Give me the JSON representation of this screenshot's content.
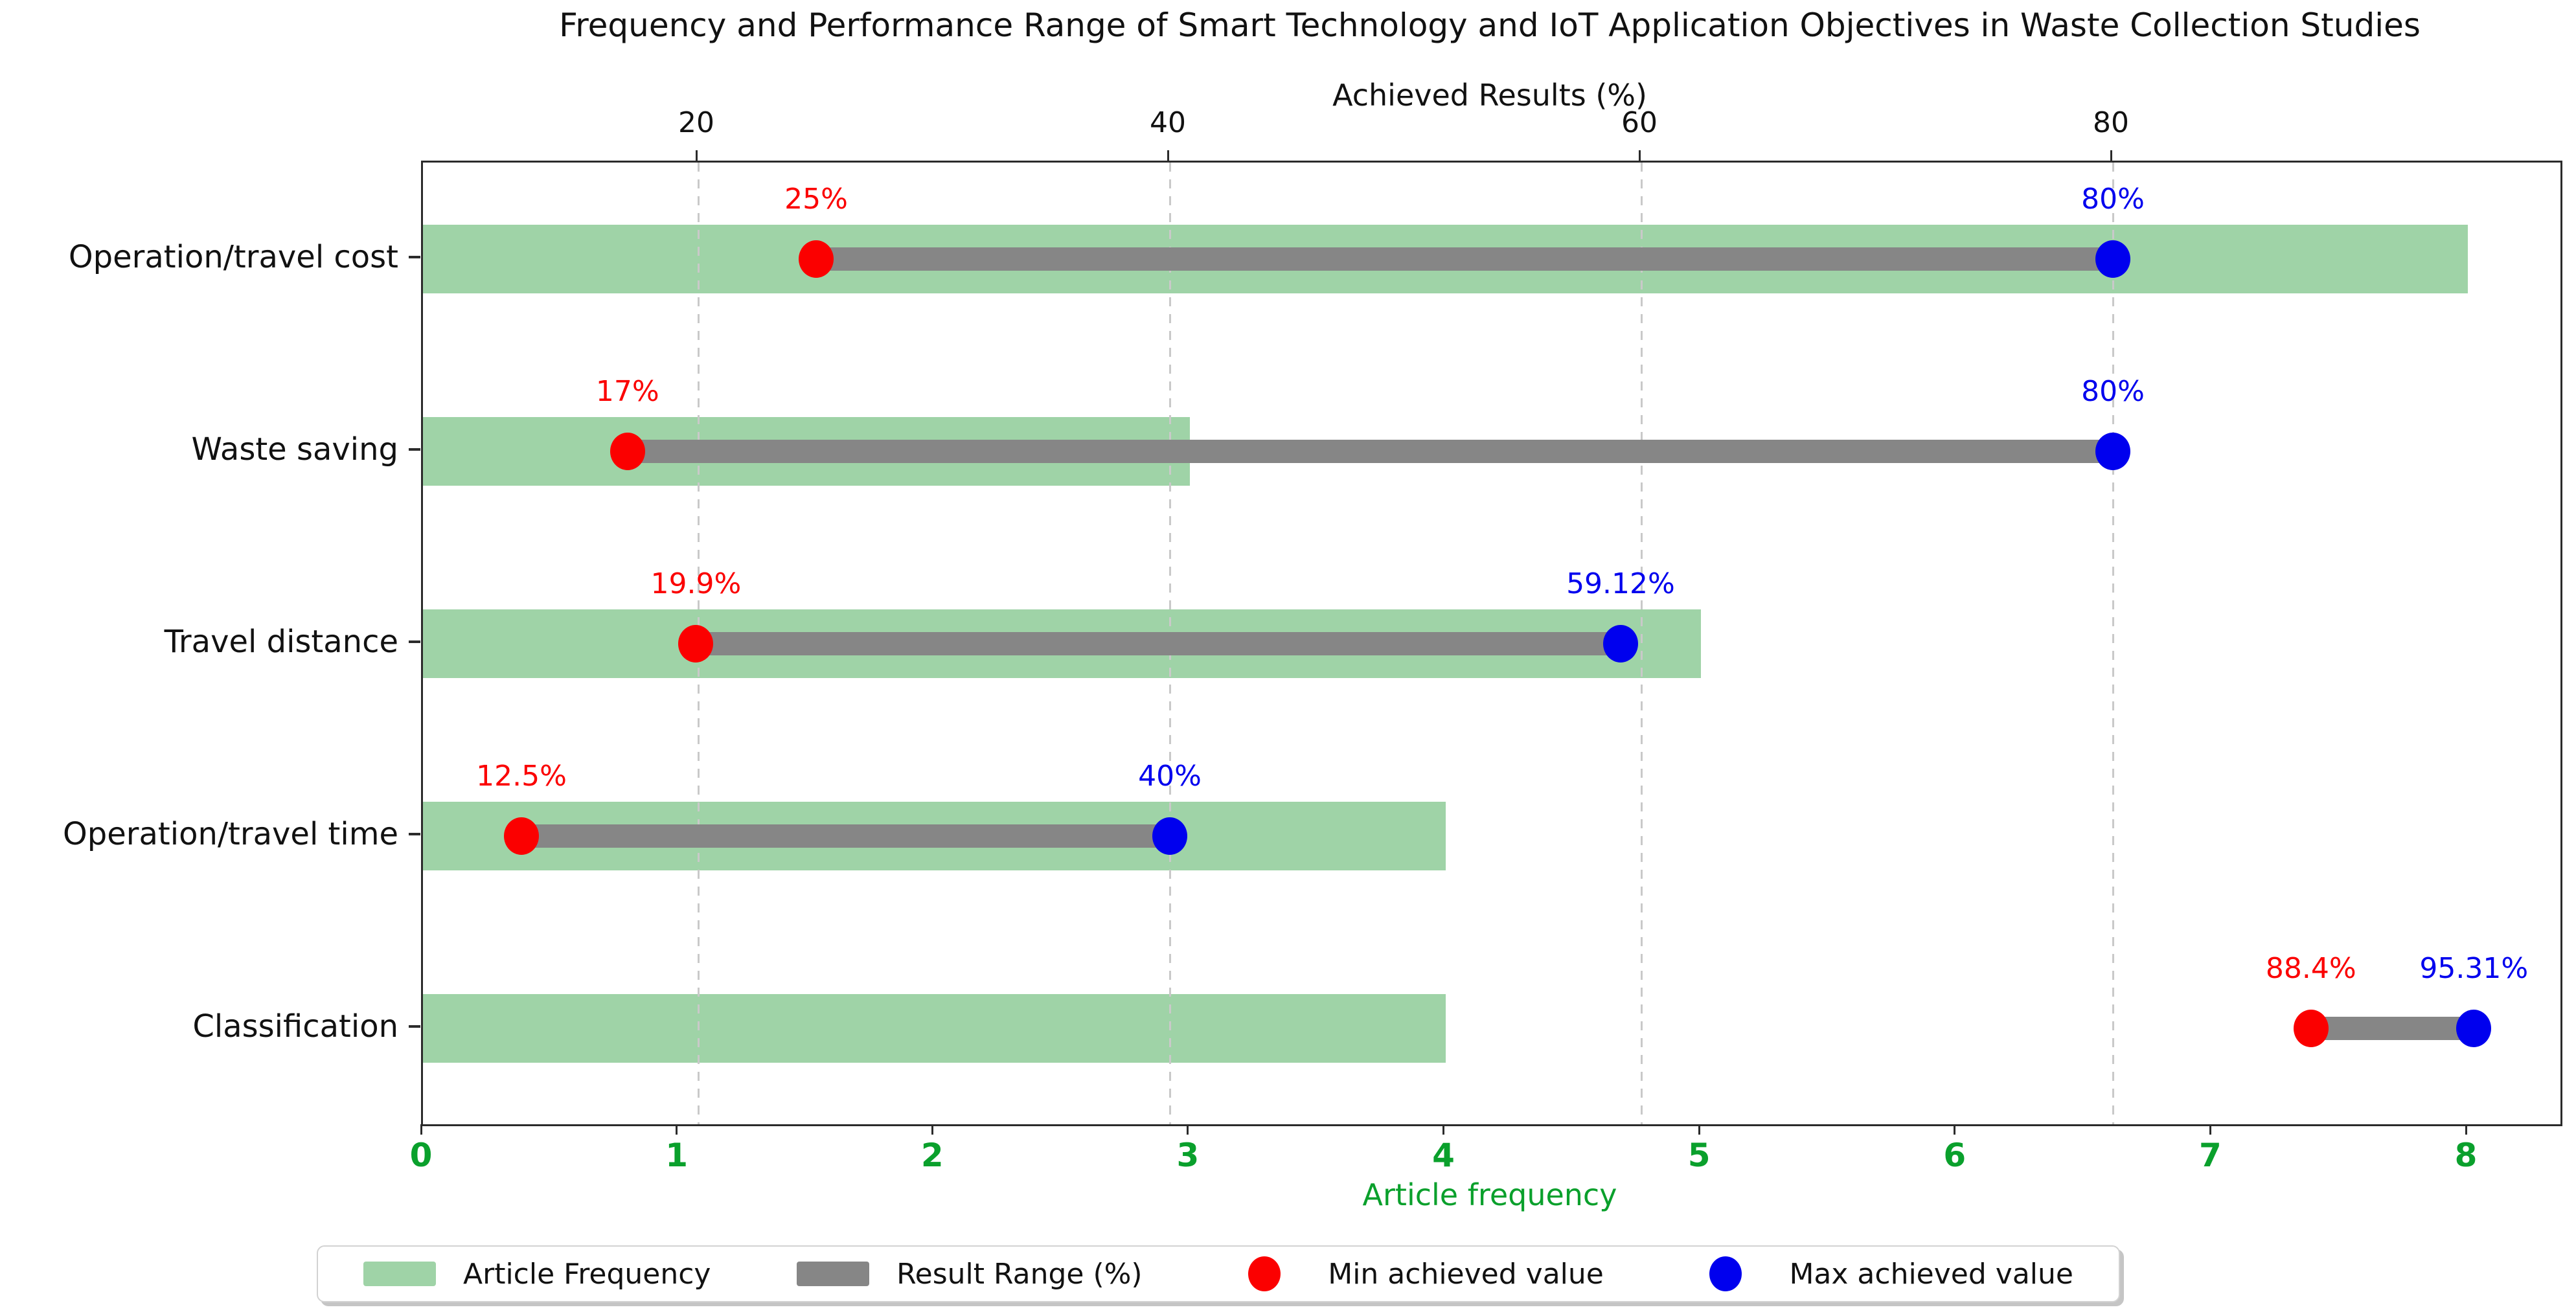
{
  "title": "Frequency and Performance Range of Smart Technology and IoT Application Objectives in Waste Collection Studies",
  "chart_data": {
    "type": "bar",
    "orientation": "horizontal",
    "categories": [
      "Operation/travel cost",
      "Waste saving",
      "Travel distance",
      "Operation/travel time",
      "Classification"
    ],
    "series": [
      {
        "name": "Article Frequency",
        "type": "bar",
        "values": [
          8,
          3,
          5,
          4,
          4
        ]
      },
      {
        "name": "Result Range (%)",
        "type": "range",
        "min": [
          25,
          17,
          19.9,
          12.5,
          88.4
        ],
        "max": [
          80,
          80,
          59.12,
          40,
          95.31
        ],
        "min_labels": [
          "25%",
          "17%",
          "19.9%",
          "12.5%",
          "88.4%"
        ],
        "max_labels": [
          "80%",
          "80%",
          "59.12%",
          "40%",
          "95.31%"
        ]
      }
    ],
    "xlabel_bottom": "Article frequency",
    "xlabel_top": "Achieved Results (%)",
    "x_bottom_ticks": [
      0,
      1,
      2,
      3,
      4,
      5,
      6,
      7,
      8
    ],
    "x_bottom_range": [
      0,
      8.36
    ],
    "x_top_ticks": [
      20,
      40,
      60,
      80
    ],
    "x_top_range": [
      8.3,
      98.9
    ],
    "grid": "vertical dashed lines at top-axis ticks",
    "legend_position": "bottom center"
  },
  "legend": {
    "items": [
      {
        "label": "Article Frequency",
        "swatch": "line",
        "color_key": "bar_green"
      },
      {
        "label": "Result Range (%)",
        "swatch": "line",
        "color_key": "range_gray"
      },
      {
        "label": "Min achieved value",
        "swatch": "dot",
        "color_key": "min_red"
      },
      {
        "label": "Max achieved value",
        "swatch": "dot",
        "color_key": "max_blue"
      }
    ]
  },
  "colors": {
    "bar_green": "#9fd3a7",
    "range_gray": "#868686",
    "min_red": "#fb0000",
    "max_blue": "#0000ee",
    "axis_green": "#0aa02c",
    "grid_gray": "#c9c9c9",
    "text_black": "#111111"
  }
}
